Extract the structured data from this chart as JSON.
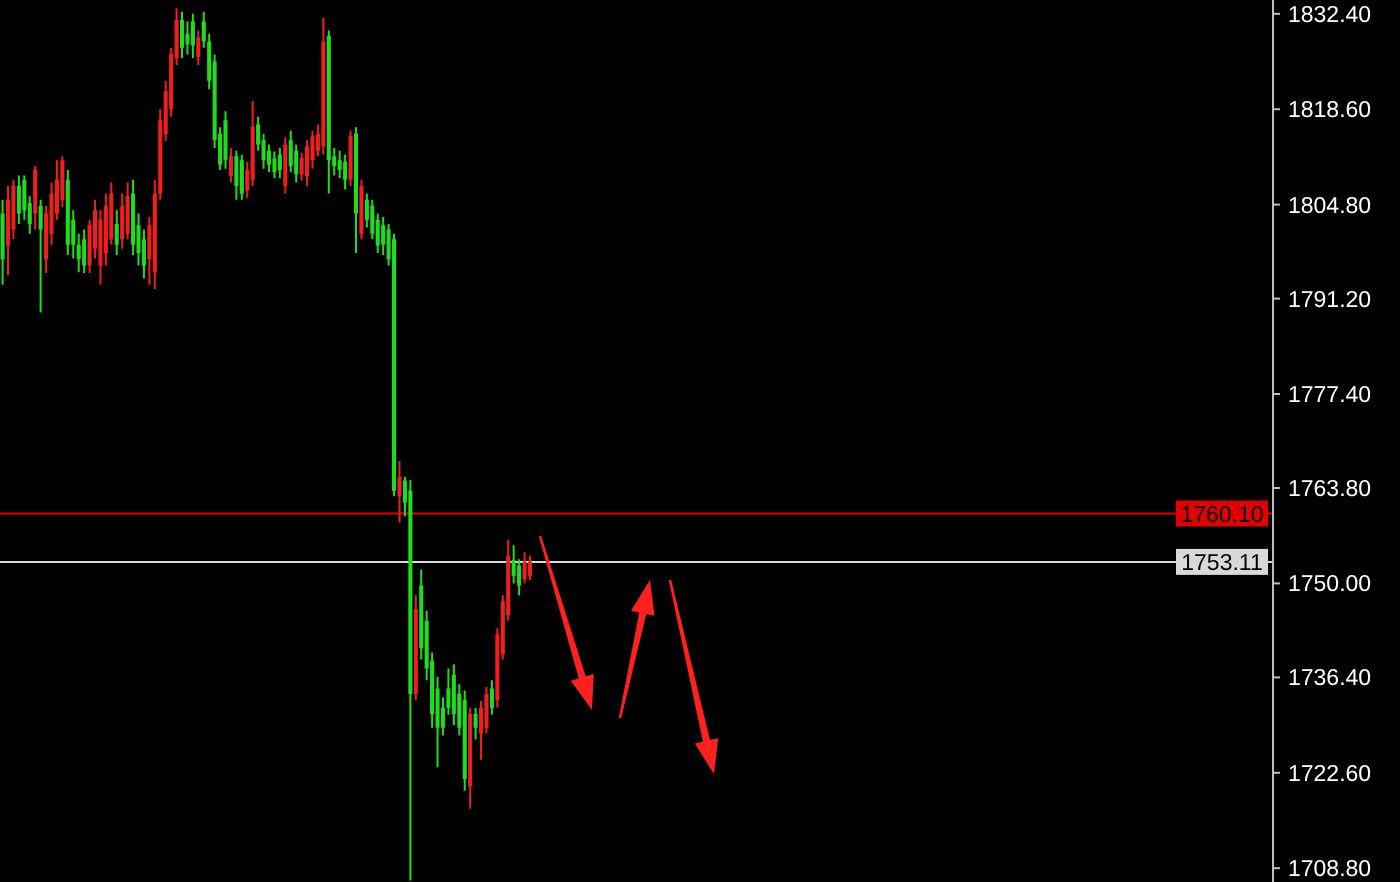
{
  "chart_data": {
    "type": "candlestick",
    "categories": [
      null,
      null,
      null,
      null,
      null,
      null,
      null,
      null,
      null,
      null,
      null,
      null,
      null,
      null,
      null,
      null,
      null,
      null,
      null,
      null,
      null,
      null,
      null,
      null,
      null,
      null,
      null,
      null,
      null,
      null,
      null,
      null,
      null,
      null,
      null,
      null,
      null,
      null,
      null,
      null,
      null,
      null,
      null,
      null,
      null,
      null,
      null,
      null,
      null,
      null,
      null,
      null,
      null,
      null,
      null,
      null,
      null,
      null,
      null,
      null,
      null,
      null,
      null,
      null,
      null,
      null,
      null,
      null,
      null,
      null,
      null,
      null,
      null,
      null,
      null,
      null,
      null,
      null,
      null,
      null,
      null,
      null,
      null,
      null,
      null,
      null,
      null,
      null,
      null,
      null,
      null,
      null,
      null,
      null,
      null,
      null,
      null,
      null,
      null,
      null,
      null,
      null,
      null,
      null,
      null,
      null,
      null,
      null,
      null,
      null,
      null,
      null,
      null,
      null,
      null,
      null,
      null,
      null,
      null,
      null,
      null,
      null,
      null,
      null,
      null,
      null,
      null,
      null,
      null,
      null,
      null,
      null,
      null,
      null,
      null,
      null,
      null,
      null,
      null,
      null,
      null,
      null,
      null,
      null,
      null,
      null,
      null,
      null,
      null,
      null,
      null,
      null,
      null,
      null,
      null,
      null,
      null,
      null,
      null,
      null,
      null,
      null,
      null,
      null,
      null,
      null,
      null,
      null,
      null,
      null,
      null,
      null,
      null,
      null,
      null,
      null,
      null,
      null,
      null,
      null,
      null,
      null,
      null,
      null,
      null,
      null,
      null,
      null,
      null,
      null,
      null,
      null,
      null,
      null,
      null,
      null,
      null,
      null,
      null,
      null,
      null,
      null,
      null,
      null,
      null,
      null,
      null,
      null,
      null,
      null,
      null,
      null,
      null,
      null,
      null,
      null,
      null,
      null,
      null,
      null,
      null,
      null,
      null,
      null,
      null,
      null,
      null,
      null,
      null,
      null,
      null,
      null,
      null,
      null
    ],
    "ohlc": [
      [
        1803.5,
        1805.5,
        1793.2,
        1796.9
      ],
      [
        1798.9,
        1807.5,
        1794.6,
        1805.5
      ],
      [
        1801.2,
        1808.4,
        1799.8,
        1807.5
      ],
      [
        1807.5,
        1809.0,
        1802.0,
        1803.5
      ],
      [
        1808.4,
        1809.0,
        1802.6,
        1804.0
      ],
      [
        1805.0,
        1806.0,
        1800.6,
        1802.0
      ],
      [
        1803.5,
        1810.4,
        1801.2,
        1809.8
      ],
      [
        1804.6,
        1805.5,
        1789.2,
        1801.2
      ],
      [
        1796.9,
        1804.6,
        1794.9,
        1803.5
      ],
      [
        1800.6,
        1808.0,
        1799.0,
        1806.4
      ],
      [
        1803.5,
        1811.2,
        1802.6,
        1808.4
      ],
      [
        1805.5,
        1811.8,
        1804.4,
        1811.2
      ],
      [
        1808.4,
        1809.8,
        1797.5,
        1799.0
      ],
      [
        1802.6,
        1804.0,
        1797.0,
        1799.0
      ],
      [
        1799.0,
        1800.6,
        1795.0,
        1796.9
      ],
      [
        1799.8,
        1801.2,
        1794.9,
        1796.0
      ],
      [
        1796.0,
        1802.6,
        1794.9,
        1801.8
      ],
      [
        1798.4,
        1805.5,
        1797.0,
        1804.0
      ],
      [
        1796.0,
        1804.0,
        1793.2,
        1802.6
      ],
      [
        1797.8,
        1806.4,
        1796.0,
        1804.6
      ],
      [
        1799.8,
        1808.0,
        1799.0,
        1806.4
      ],
      [
        1802.0,
        1804.0,
        1797.5,
        1799.0
      ],
      [
        1799.8,
        1806.4,
        1798.4,
        1804.6
      ],
      [
        1800.6,
        1808.0,
        1799.8,
        1806.0
      ],
      [
        1806.4,
        1808.4,
        1797.5,
        1799.0
      ],
      [
        1801.8,
        1803.5,
        1796.0,
        1797.8
      ],
      [
        1799.8,
        1801.2,
        1794.1,
        1796.0
      ],
      [
        1796.9,
        1803.0,
        1793.2,
        1801.8
      ],
      [
        1795.0,
        1808.4,
        1792.6,
        1806.4
      ],
      [
        1806.4,
        1818.6,
        1805.5,
        1817.0
      ],
      [
        1815.0,
        1822.7,
        1814.0,
        1821.2
      ],
      [
        1818.6,
        1827.5,
        1817.5,
        1826.5
      ],
      [
        1826.0,
        1833.2,
        1825.0,
        1831.5
      ],
      [
        1831.5,
        1832.7,
        1826.0,
        1827.5
      ],
      [
        1829.5,
        1831.3,
        1826.5,
        1828.0
      ],
      [
        1831.3,
        1832.4,
        1826.0,
        1827.8
      ],
      [
        1826.1,
        1830.0,
        1825.0,
        1829.0
      ],
      [
        1831.3,
        1832.7,
        1827.5,
        1828.4
      ],
      [
        1828.4,
        1829.5,
        1821.5,
        1822.7
      ],
      [
        1825.5,
        1826.5,
        1813.0,
        1814.1
      ],
      [
        1815.0,
        1816.0,
        1809.8,
        1810.6
      ],
      [
        1817.0,
        1818.3,
        1810.0,
        1811.2
      ],
      [
        1808.9,
        1813.0,
        1808.0,
        1811.8
      ],
      [
        1811.8,
        1812.6,
        1805.5,
        1807.5
      ],
      [
        1811.2,
        1812.0,
        1805.5,
        1806.4
      ],
      [
        1806.8,
        1811.0,
        1805.8,
        1809.8
      ],
      [
        1808.4,
        1819.8,
        1807.5,
        1816.1
      ],
      [
        1816.4,
        1817.5,
        1812.6,
        1813.5
      ],
      [
        1814.1,
        1815.0,
        1810.0,
        1811.2
      ],
      [
        1812.6,
        1813.5,
        1809.5,
        1810.6
      ],
      [
        1811.5,
        1812.5,
        1808.6,
        1809.5
      ],
      [
        1812.0,
        1813.0,
        1808.6,
        1809.8
      ],
      [
        1807.5,
        1814.5,
        1806.4,
        1813.5
      ],
      [
        1814.1,
        1815.5,
        1809.5,
        1810.4
      ],
      [
        1812.6,
        1813.5,
        1808.0,
        1809.2
      ],
      [
        1809.2,
        1812.3,
        1808.3,
        1811.5
      ],
      [
        1808.9,
        1814.1,
        1807.5,
        1813.2
      ],
      [
        1811.2,
        1815.5,
        1810.0,
        1814.7
      ],
      [
        1812.6,
        1816.4,
        1811.8,
        1815.0
      ],
      [
        1813.2,
        1831.8,
        1812.0,
        1828.4
      ],
      [
        1829.2,
        1830.0,
        1806.4,
        1811.2
      ],
      [
        1811.8,
        1813.0,
        1809.0,
        1810.4
      ],
      [
        1811.2,
        1812.6,
        1808.6,
        1809.8
      ],
      [
        1811.0,
        1812.0,
        1807.0,
        1808.4
      ],
      [
        1808.4,
        1815.5,
        1807.5,
        1814.7
      ],
      [
        1815.0,
        1816.0,
        1797.8,
        1803.5
      ],
      [
        1800.6,
        1808.4,
        1799.8,
        1807.5
      ],
      [
        1805.5,
        1806.4,
        1801.5,
        1802.6
      ],
      [
        1804.6,
        1805.5,
        1799.8,
        1800.6
      ],
      [
        1802.6,
        1803.5,
        1797.8,
        1798.9
      ],
      [
        1801.8,
        1803.0,
        1797.5,
        1799.0
      ],
      [
        1801.2,
        1802.0,
        1796.0,
        1796.9
      ],
      [
        1799.8,
        1800.6,
        1762.6,
        1763.4
      ],
      [
        1762.6,
        1767.7,
        1758.8,
        1765.4
      ],
      [
        1764.9,
        1765.4,
        1759.7,
        1761.7
      ],
      [
        1763.4,
        1765.0,
        1707.0,
        1734.0
      ],
      [
        1734.0,
        1748.3,
        1733.1,
        1746.3
      ],
      [
        1749.7,
        1752.0,
        1739.0,
        1740.6
      ],
      [
        1744.6,
        1746.0,
        1736.0,
        1737.7
      ],
      [
        1738.8,
        1740.0,
        1729.1,
        1731.1
      ],
      [
        1734.8,
        1736.5,
        1723.4,
        1729.1
      ],
      [
        1732.0,
        1733.5,
        1728.0,
        1729.1
      ],
      [
        1734.8,
        1737.7,
        1731.0,
        1732.0
      ],
      [
        1736.8,
        1738.3,
        1729.5,
        1731.1
      ],
      [
        1734.0,
        1735.4,
        1728.0,
        1729.1
      ],
      [
        1733.1,
        1734.5,
        1720.0,
        1721.7
      ],
      [
        1720.6,
        1732.0,
        1717.4,
        1731.1
      ],
      [
        1731.1,
        1732.0,
        1727.4,
        1729.1
      ],
      [
        1728.3,
        1733.0,
        1724.5,
        1732.0
      ],
      [
        1729.1,
        1735.0,
        1728.3,
        1734.0
      ],
      [
        1734.8,
        1736.0,
        1731.0,
        1732.0
      ],
      [
        1733.1,
        1743.5,
        1732.0,
        1742.6
      ],
      [
        1739.7,
        1748.3,
        1739.0,
        1747.4
      ],
      [
        1745.4,
        1756.3,
        1744.6,
        1754.0
      ],
      [
        1753.4,
        1755.5,
        1750.0,
        1751.1
      ],
      [
        1752.6,
        1753.5,
        1748.3,
        1749.7
      ],
      [
        1750.6,
        1754.5,
        1750.0,
        1753.1
      ],
      [
        1751.1,
        1754.0,
        1750.5,
        1753.1
      ],
      null,
      null,
      null,
      null,
      null,
      null,
      null,
      null,
      null,
      null,
      null,
      null,
      null,
      null,
      null,
      null,
      null,
      null,
      null,
      null,
      null,
      null,
      null,
      null,
      null,
      null,
      null,
      null,
      null,
      null,
      null,
      null,
      null,
      null,
      null,
      null,
      null,
      null,
      null,
      null,
      null,
      null,
      null,
      null,
      null,
      null,
      null,
      null,
      null,
      null,
      null,
      null,
      null,
      null,
      null,
      null,
      null,
      null,
      null,
      null,
      null,
      null,
      null,
      null,
      null,
      null,
      null,
      null,
      null,
      null,
      null,
      null,
      null,
      null,
      null,
      null,
      null,
      null,
      null,
      null,
      null,
      null,
      null,
      null,
      null,
      null,
      null,
      null,
      null,
      null,
      null,
      null,
      null,
      null,
      null,
      null,
      null,
      null,
      null,
      null,
      null,
      null,
      null,
      null,
      null,
      null,
      null,
      null,
      null,
      null,
      null,
      null,
      null,
      null,
      null,
      null,
      null,
      null,
      null,
      null,
      null,
      null,
      null,
      null,
      null,
      null,
      null,
      null,
      null,
      null,
      null,
      null,
      null,
      null,
      null,
      null
    ],
    "colors": [
      "#1edc1e",
      "#f01e1e",
      "#f01e1e",
      "#1edc1e",
      "#1edc1e",
      "#1edc1e",
      "#f01e1e",
      "#1edc1e",
      "#f01e1e",
      "#f01e1e",
      "#f01e1e",
      "#f01e1e",
      "#1edc1e",
      "#1edc1e",
      "#1edc1e",
      "#1edc1e",
      "#f01e1e",
      "#f01e1e",
      "#f01e1e",
      "#f01e1e",
      "#f01e1e",
      "#1edc1e",
      "#f01e1e",
      "#f01e1e",
      "#1edc1e",
      "#1edc1e",
      "#1edc1e",
      "#f01e1e",
      "#f01e1e",
      "#f01e1e",
      "#f01e1e",
      "#f01e1e",
      "#f01e1e",
      "#1edc1e",
      "#1edc1e",
      "#1edc1e",
      "#f01e1e",
      "#1edc1e",
      "#1edc1e",
      "#1edc1e",
      "#1edc1e",
      "#1edc1e",
      "#f01e1e",
      "#1edc1e",
      "#1edc1e",
      "#f01e1e",
      "#f01e1e",
      "#1edc1e",
      "#1edc1e",
      "#1edc1e",
      "#1edc1e",
      "#1edc1e",
      "#f01e1e",
      "#1edc1e",
      "#1edc1e",
      "#f01e1e",
      "#f01e1e",
      "#f01e1e",
      "#f01e1e",
      "#f01e1e",
      "#1edc1e",
      "#1edc1e",
      "#1edc1e",
      "#1edc1e",
      "#f01e1e",
      "#1edc1e",
      "#f01e1e",
      "#1edc1e",
      "#1edc1e",
      "#1edc1e",
      "#1edc1e",
      "#1edc1e",
      "#1edc1e",
      "#f01e1e",
      "#1edc1e",
      "#1edc1e",
      "#f01e1e",
      "#1edc1e",
      "#1edc1e",
      "#1edc1e",
      "#1edc1e",
      "#1edc1e",
      "#1edc1e",
      "#1edc1e",
      "#1edc1e",
      "#1edc1e",
      "#f01e1e",
      "#1edc1e",
      "#f01e1e",
      "#f01e1e",
      "#1edc1e",
      "#f01e1e",
      "#f01e1e",
      "#f01e1e",
      "#1edc1e",
      "#1edc1e",
      "#f01e1e",
      "#f01e1e",
      null,
      null,
      null,
      null,
      null,
      null,
      null,
      null,
      null,
      null,
      null,
      null,
      null,
      null,
      null,
      null,
      null,
      null,
      null,
      null,
      null,
      null,
      null,
      null,
      null,
      null,
      null,
      null,
      null,
      null,
      null,
      null,
      null,
      null,
      null,
      null,
      null,
      null,
      null,
      null,
      null,
      null,
      null,
      null,
      null,
      null,
      null,
      null,
      null,
      null,
      null,
      null,
      null,
      null,
      null,
      null,
      null,
      null,
      null,
      null,
      null,
      null,
      null,
      null,
      null,
      null,
      null,
      null,
      null,
      null,
      null,
      null,
      null,
      null,
      null,
      null,
      null,
      null,
      null,
      null,
      null,
      null,
      null,
      null,
      null,
      null,
      null,
      null,
      null,
      null,
      null,
      null,
      null,
      null,
      null,
      null,
      null,
      null,
      null,
      null,
      null,
      null,
      null,
      null,
      null,
      null,
      null,
      null,
      null,
      null,
      null,
      null,
      null,
      null,
      null,
      null,
      null,
      null,
      null,
      null,
      null,
      null,
      null,
      null,
      null,
      null,
      null,
      null,
      null,
      null,
      null,
      null,
      null,
      null,
      null,
      null
    ],
    "ylim": [
      1706.8,
      1834.4
    ],
    "yticks": [
      {
        "value": 1832.4,
        "label": "1832.40"
      },
      {
        "value": 1818.6,
        "label": "1818.60"
      },
      {
        "value": 1804.8,
        "label": "1804.80"
      },
      {
        "value": 1791.2,
        "label": "1791.20"
      },
      {
        "value": 1777.4,
        "label": "1777.40"
      },
      {
        "value": 1763.8,
        "label": "1763.80"
      },
      {
        "value": 1750,
        "label": "1750.00"
      },
      {
        "value": 1736.4,
        "label": "1736.40"
      },
      {
        "value": 1722.6,
        "label": "1722.60"
      },
      {
        "value": 1708.8,
        "label": "1708.80"
      }
    ],
    "tick_labels": "y",
    "ref_lines": [
      {
        "axis": "y",
        "value": 1760.1,
        "label": "1760.10",
        "color": "#e00000"
      },
      {
        "axis": "y",
        "value": 1753.11,
        "label": "1753.11",
        "color": "#d8d8d8"
      }
    ]
  }
}
